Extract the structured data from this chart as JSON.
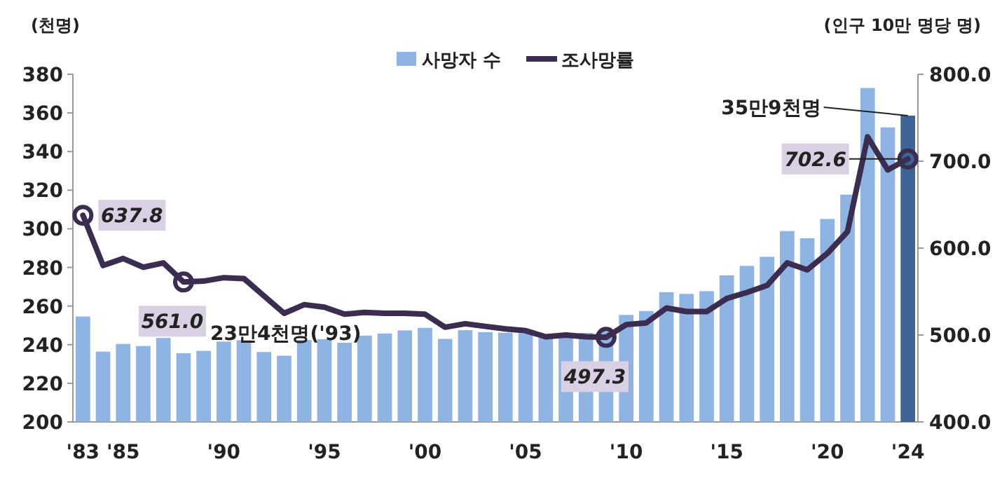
{
  "chart_data": {
    "type": "bar",
    "ylabel": "(천명)",
    "y2label": "(인구 10만 명당 명)",
    "categories": [
      "'83",
      null,
      "'85",
      null,
      null,
      null,
      null,
      "'90",
      null,
      null,
      null,
      null,
      "'95",
      null,
      null,
      null,
      null,
      "'00",
      null,
      null,
      null,
      null,
      "'05",
      null,
      null,
      null,
      null,
      "'10",
      null,
      null,
      null,
      null,
      "'15",
      null,
      null,
      null,
      null,
      "'20",
      null,
      null,
      null,
      "'24"
    ],
    "series": [
      {
        "name": "사망자 수",
        "color": "#8db4e2",
        "colors": [
          "#8db4e2",
          "#8db4e2",
          "#8db4e2",
          "#8db4e2",
          "#8db4e2",
          "#8db4e2",
          "#8db4e2",
          "#8db4e2",
          "#8db4e2",
          "#8db4e2",
          "#8db4e2",
          "#8db4e2",
          "#8db4e2",
          "#8db4e2",
          "#8db4e2",
          "#8db4e2",
          "#8db4e2",
          "#8db4e2",
          "#8db4e2",
          "#8db4e2",
          "#8db4e2",
          "#8db4e2",
          "#8db4e2",
          "#8db4e2",
          "#8db4e2",
          "#8db4e2",
          "#8db4e2",
          "#8db4e2",
          "#8db4e2",
          "#8db4e2",
          "#8db4e2",
          "#8db4e2",
          "#8db4e2",
          "#8db4e2",
          "#8db4e2",
          "#8db4e2",
          "#8db4e2",
          "#8db4e2",
          "#8db4e2",
          "#8db4e2",
          "#8db4e2",
          "#3c6496"
        ],
        "values": [
          254.6,
          236.4,
          240.4,
          239.3,
          243.5,
          235.6,
          236.8,
          241.6,
          242.3,
          236.2,
          234.3,
          242.4,
          242.8,
          241.0,
          244.7,
          245.8,
          247.4,
          248.7,
          243.0,
          247.5,
          246.5,
          246.2,
          245.9,
          244.2,
          245.0,
          246.1,
          247.0,
          255.4,
          257.4,
          267.2,
          266.3,
          267.7,
          275.9,
          280.8,
          285.5,
          298.8,
          295.1,
          305.1,
          317.7,
          372.9,
          352.5,
          358.6
        ]
      },
      {
        "name": "조사망률",
        "type": "line",
        "axis": "y2",
        "color": "#3b2d4f",
        "values": [
          637.8,
          580,
          588,
          578,
          583,
          561.0,
          562,
          566,
          565,
          545,
          525,
          535,
          532,
          524,
          526,
          525,
          525,
          524,
          509,
          513,
          510,
          507,
          505,
          498,
          500,
          498,
          497.3,
          512,
          514,
          531,
          527,
          527,
          542,
          549,
          557,
          583,
          575,
          594,
          619,
          728,
          690,
          702.6
        ],
        "value_labels": [
          "637.8",
          null,
          null,
          null,
          null,
          "561.0",
          null,
          null,
          null,
          null,
          null,
          null,
          null,
          null,
          null,
          null,
          null,
          null,
          null,
          null,
          null,
          null,
          null,
          null,
          null,
          null,
          "497.3",
          null,
          null,
          null,
          null,
          null,
          null,
          null,
          null,
          null,
          null,
          null,
          null,
          null,
          null,
          "702.6"
        ]
      }
    ],
    "ylim": [
      200,
      380
    ],
    "yticks": [
      200,
      220,
      240,
      260,
      280,
      300,
      320,
      340,
      360,
      380
    ],
    "y2lim": [
      400,
      800
    ],
    "y2ticks": [
      {
        "value": 400,
        "label": "400.0"
      },
      {
        "value": 500,
        "label": "500.0"
      },
      {
        "value": 600,
        "label": "600.0"
      },
      {
        "value": 700,
        "label": "700.0"
      },
      {
        "value": 800,
        "label": "800.0"
      }
    ],
    "legend": "top",
    "grid": false,
    "annotations": [
      {
        "text": "23만4천명('93)",
        "y": 234.3
      },
      {
        "text": "35만9천명",
        "x": "'24",
        "y": 358.6
      }
    ]
  }
}
